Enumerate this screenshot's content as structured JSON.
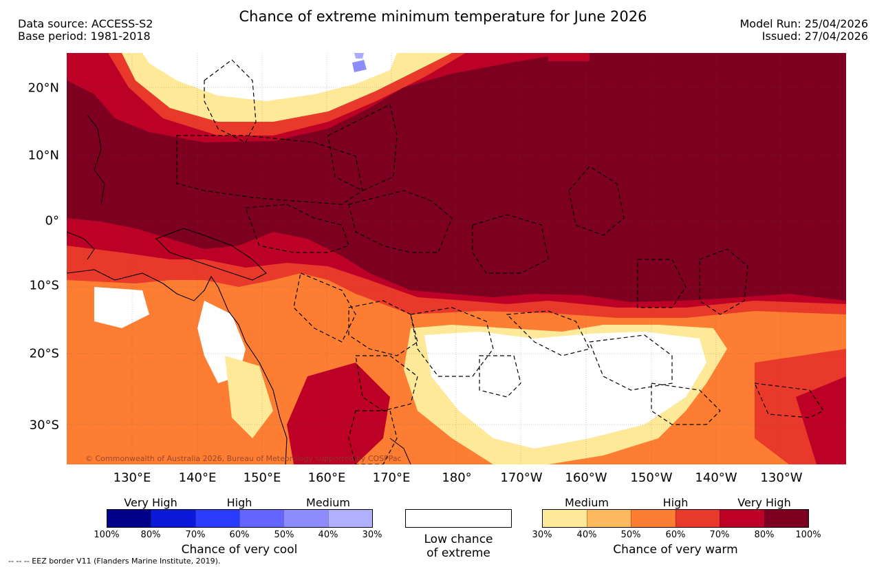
{
  "header": {
    "title": "Chance of extreme minimum temperature for June 2026",
    "data_source": "Data source: ACCESS-S2",
    "base_period": "Base period: 1981-2018",
    "model_run": "Model Run: 25/04/2026",
    "issued": "Issued: 27/04/2026"
  },
  "map": {
    "copyright": "© Commonwealth of Australia 2026, Bureau of Meteorology supported by COSPPac",
    "lon_ticks": [
      "130°E",
      "140°E",
      "150°E",
      "160°E",
      "170°E",
      "180°",
      "170°W",
      "160°W",
      "150°W",
      "140°W",
      "130°W"
    ],
    "lat_ticks": [
      "20°N",
      "10°N",
      "0°",
      "10°S",
      "20°S",
      "30°S"
    ],
    "colors": {
      "very_high_warm": "#7d0021",
      "high80": "#bd0026",
      "high70": "#e8392a",
      "medium60": "#fd7e33",
      "medium50": "#fdb95d",
      "low40": "#fee999",
      "none": "#ffffff",
      "cool30": "#aaaaff",
      "coast": "#000000"
    }
  },
  "legend": {
    "cool": {
      "categories": [
        "Very High",
        "High",
        "Medium"
      ],
      "ticks": [
        "100%",
        "80%",
        "70%",
        "60%",
        "50%",
        "40%",
        "30%"
      ],
      "colors": [
        "#000088",
        "#0a1ad8",
        "#2a3dff",
        "#6464ff",
        "#8c8cff",
        "#b0b0ff"
      ],
      "caption": "Chance of very cool"
    },
    "low": {
      "caption_line1": "Low chance",
      "caption_line2": "of extreme"
    },
    "warm": {
      "categories": [
        "Medium",
        "High",
        "Very High"
      ],
      "ticks": [
        "30%",
        "40%",
        "50%",
        "60%",
        "70%",
        "80%",
        "100%"
      ],
      "colors": [
        "#fee999",
        "#fdb95d",
        "#fd7e33",
        "#e8392a",
        "#bd0026",
        "#7d0021"
      ],
      "caption": "Chance of very warm"
    }
  },
  "footer": {
    "eez_note": "--  --  -- EEZ border V11 (Flanders Marine Institute, 2019)."
  }
}
